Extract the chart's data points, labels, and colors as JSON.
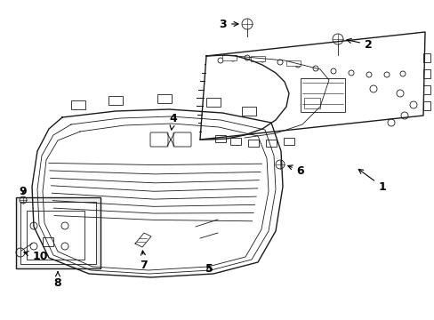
{
  "background_color": "#ffffff",
  "line_color": "#1a1a1a",
  "fig_width": 4.89,
  "fig_height": 3.6,
  "dpi": 100,
  "label_font_size": 9
}
